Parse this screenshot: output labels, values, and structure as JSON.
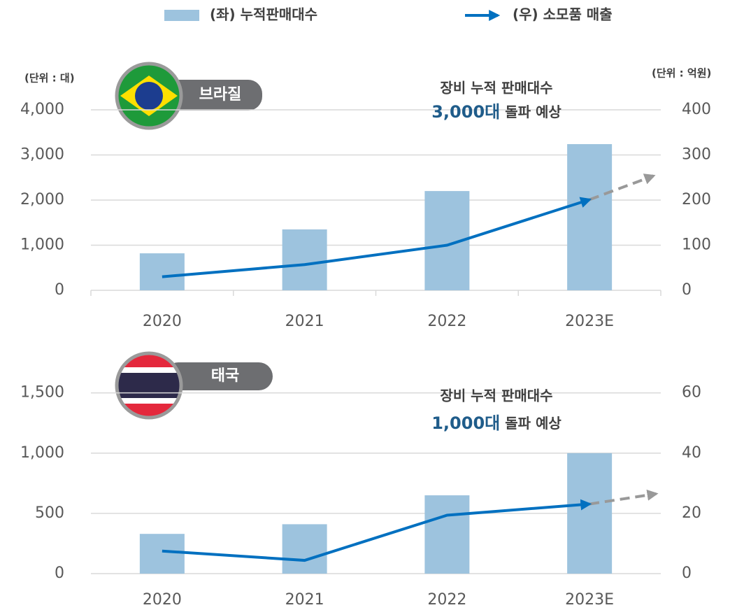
{
  "legend_series": null,
  "units": {
    "left": "(단위 : 대)",
    "right": "(단위 : 억원)"
  },
  "chart_data": [
    {
      "type": "bar_line",
      "country": "브라질",
      "annotation": {
        "line1": "장비 누적 판매대수",
        "highlight": "3,000대",
        "rest": " 돌파 예상"
      },
      "categories": [
        "2020",
        "2021",
        "2022",
        "2023E"
      ],
      "series": [
        {
          "name": "(좌) 누적판매대수",
          "color": "#9dc3de",
          "kind": "bar",
          "values": [
            820,
            1350,
            2200,
            3240
          ]
        },
        {
          "name": "(우) 소모품 매출",
          "color": "#0070c0",
          "kind": "line",
          "axis": "y2",
          "values": [
            30,
            57,
            100,
            201
          ]
        }
      ],
      "ylim": [
        0,
        4000
      ],
      "yticks": [
        0,
        {
          "value": 1000,
          "label": "1,000"
        },
        {
          "value": 2000,
          "label": "2,000"
        },
        {
          "value": 3000,
          "label": "3,000"
        },
        {
          "value": 4000,
          "label": "4,000"
        }
      ],
      "y2lim": [
        0,
        400
      ],
      "y2ticks": [
        0,
        100,
        200,
        300,
        400
      ],
      "grid": true
    },
    {
      "type": "bar_line",
      "country": "태국",
      "annotation": {
        "line1": "장비 누적 판매대수",
        "highlight": "1,000대",
        "rest": " 돌파 예상"
      },
      "categories": [
        "2020",
        "2021",
        "2022",
        "2023E"
      ],
      "series": [
        {
          "color": "#9dc3de",
          "kind": "bar",
          "values": [
            330,
            410,
            650,
            1000
          ]
        },
        {
          "color": "#0070c0",
          "kind": "line",
          "axis": "y2",
          "values": [
            7.5,
            4.4,
            19.4,
            23.1
          ]
        }
      ],
      "ylim": [
        0,
        1800
      ],
      "yticks": [
        0,
        500,
        {
          "value": 1000,
          "label": "1,000"
        },
        {
          "value": 1500,
          "label": "1,500"
        }
      ],
      "y2lim": [
        0,
        72
      ],
      "y2ticks": [
        0,
        20,
        40,
        60
      ],
      "grid": true
    }
  ]
}
